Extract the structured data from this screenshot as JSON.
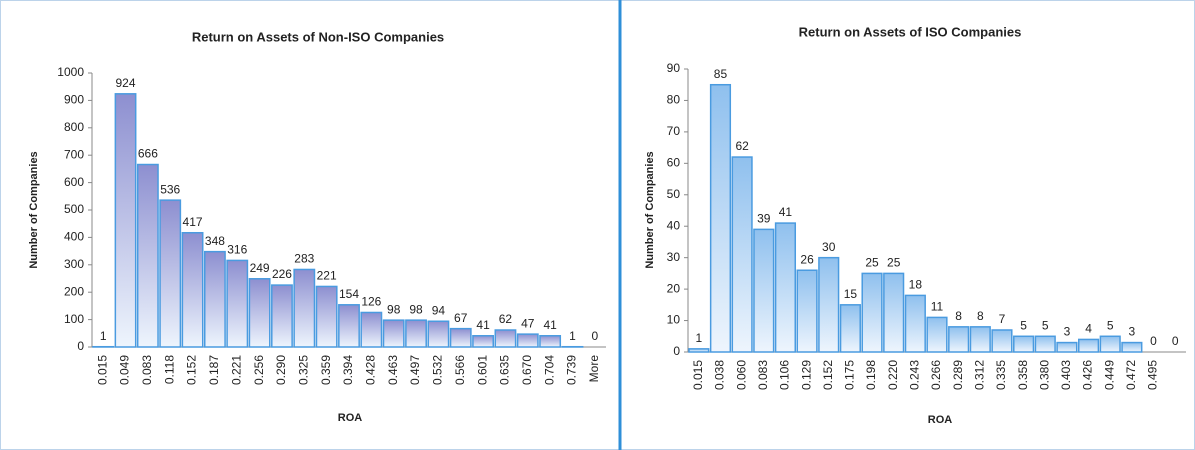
{
  "chart_data": [
    {
      "type": "bar",
      "title": "Return on Assets of Non-ISO Companies",
      "x_label": "ROA",
      "y_label": "Number of Companies",
      "categories": [
        "0.015",
        "0.049",
        "0.083",
        "0.118",
        "0.152",
        "0.187",
        "0.221",
        "0.256",
        "0.290",
        "0.325",
        "0.359",
        "0.394",
        "0.428",
        "0.463",
        "0.497",
        "0.532",
        "0.566",
        "0.601",
        "0.635",
        "0.670",
        "0.704",
        "0.739",
        "More"
      ],
      "values": [
        1,
        924,
        666,
        536,
        417,
        348,
        316,
        249,
        226,
        283,
        221,
        154,
        126,
        98,
        98,
        94,
        67,
        41,
        62,
        47,
        41,
        1,
        0
      ],
      "color": "#8d8fd0",
      "ylim": [
        0,
        1000
      ],
      "yticks": [
        0,
        100,
        200,
        300,
        400,
        500,
        600,
        700,
        800,
        900,
        1000
      ]
    },
    {
      "type": "bar",
      "title": "Return on Assets of ISO Companies",
      "x_label": "ROA",
      "y_label": "Number of Companies",
      "categories": [
        "0.015",
        "0.038",
        "0.060",
        "0.083",
        "0.106",
        "0.129",
        "0.152",
        "0.175",
        "0.198",
        "0.220",
        "0.243",
        "0.266",
        "0.289",
        "0.312",
        "0.335",
        "0.358",
        "0.380",
        "0.403",
        "0.426",
        "0.449",
        "0.472",
        "0.495",
        null
      ],
      "values": [
        1,
        85,
        62,
        39,
        41,
        26,
        30,
        15,
        25,
        25,
        18,
        11,
        8,
        8,
        7,
        5,
        5,
        3,
        4,
        5,
        3,
        0,
        0
      ],
      "color": "#8fc0ee",
      "ylim": [
        0,
        90
      ],
      "yticks": [
        0,
        10,
        20,
        30,
        40,
        50,
        60,
        70,
        80,
        90
      ]
    }
  ]
}
